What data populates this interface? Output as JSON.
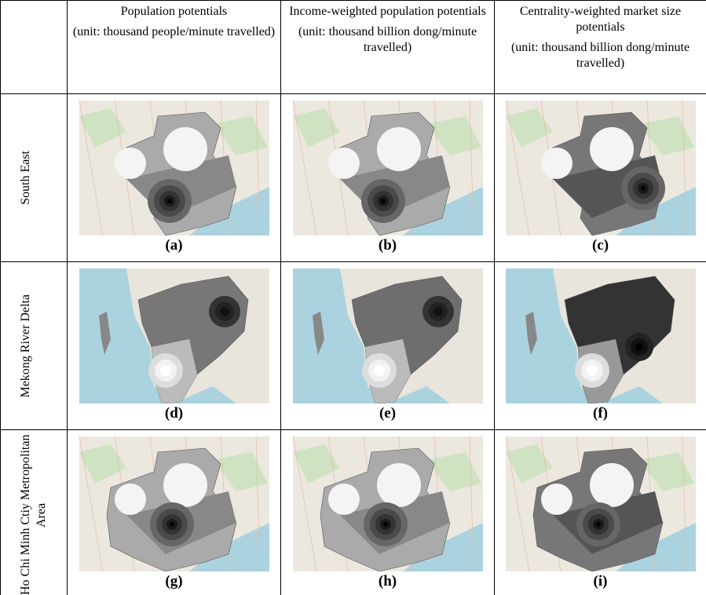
{
  "header": {
    "columns": [
      {
        "title": "Population potentials",
        "unit": "(unit: thousand people/minute travelled)"
      },
      {
        "title": "Income-weighted population potentials",
        "unit": "(unit: thousand billion dong/minute travelled)"
      },
      {
        "title": "Centrality-weighted market size potentials",
        "unit": "(unit: thousand billion dong/minute travelled)"
      }
    ]
  },
  "rows": [
    {
      "label": "South East",
      "panels": [
        "(a)",
        "(b)",
        "(c)"
      ]
    },
    {
      "label": "Mekong River Delta",
      "panels": [
        "(d)",
        "(e)",
        "(f)"
      ]
    },
    {
      "label": "Ho Chi Minh Ctiy Metropolitan Area",
      "panels": [
        "(g)",
        "(h)",
        "(i)"
      ]
    }
  ]
}
